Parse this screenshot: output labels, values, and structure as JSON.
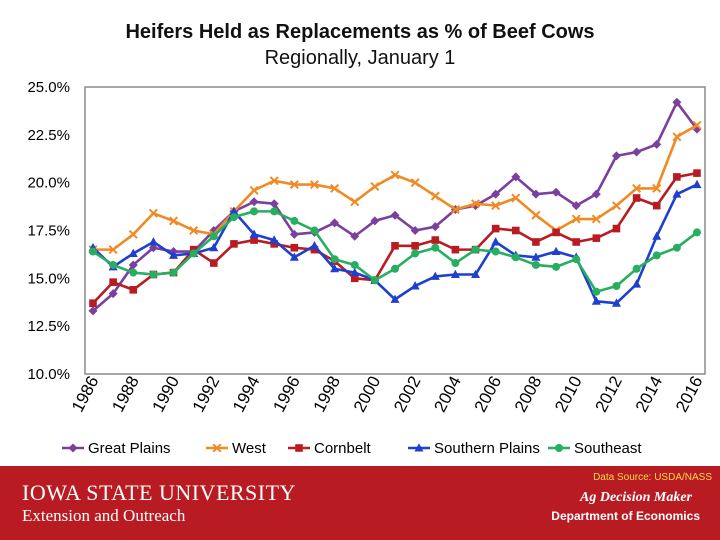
{
  "chart_data": {
    "type": "line",
    "title": "Heifers Held as Replacements as % of Beef Cows",
    "subtitle": "Regionally, January 1",
    "xlabel": "",
    "ylabel": "",
    "ylim": [
      10,
      25
    ],
    "y_ticks": [
      10,
      12.5,
      15,
      17.5,
      20,
      22.5,
      25
    ],
    "y_tick_labels": [
      "10.0%",
      "12.5%",
      "15.0%",
      "17.5%",
      "20.0%",
      "22.5%",
      "25.0%"
    ],
    "x": [
      1986,
      1987,
      1988,
      1989,
      1990,
      1991,
      1992,
      1993,
      1994,
      1995,
      1996,
      1997,
      1998,
      1999,
      2000,
      2001,
      2002,
      2003,
      2004,
      2005,
      2006,
      2007,
      2008,
      2009,
      2010,
      2011,
      2012,
      2013,
      2014,
      2015,
      2016
    ],
    "x_tick_labels": [
      "1986",
      "1988",
      "1990",
      "1992",
      "1994",
      "1996",
      "1998",
      "2000",
      "2002",
      "2004",
      "2006",
      "2008",
      "2010",
      "2012",
      "2014",
      "2016"
    ],
    "grid": false,
    "legend_position": "bottom",
    "series": [
      {
        "name": "Great Plains",
        "color": "#7b3f9e",
        "marker": "diamond",
        "values": [
          13.3,
          14.2,
          15.7,
          16.6,
          16.4,
          16.4,
          17.5,
          18.5,
          19.0,
          18.9,
          17.3,
          17.4,
          17.9,
          17.2,
          18.0,
          18.3,
          17.5,
          17.7,
          18.6,
          18.8,
          19.4,
          20.3,
          19.4,
          19.5,
          18.8,
          19.4,
          21.4,
          21.6,
          22.0,
          24.2,
          22.8
        ]
      },
      {
        "name": "West",
        "color": "#f08a24",
        "marker": "x",
        "values": [
          16.5,
          16.5,
          17.3,
          18.4,
          18.0,
          17.5,
          17.3,
          18.5,
          19.6,
          20.1,
          19.9,
          19.9,
          19.7,
          19.0,
          19.8,
          20.4,
          20.0,
          19.3,
          18.6,
          18.9,
          18.8,
          19.2,
          18.3,
          17.5,
          18.1,
          18.1,
          18.8,
          19.7,
          19.7,
          22.4,
          23.0
        ]
      },
      {
        "name": "Cornbelt",
        "color": "#b81c22",
        "marker": "square",
        "values": [
          13.7,
          14.8,
          14.4,
          15.2,
          15.3,
          16.5,
          15.8,
          16.8,
          17.0,
          16.8,
          16.6,
          16.5,
          15.9,
          15.0,
          14.9,
          16.7,
          16.7,
          17.0,
          16.5,
          16.5,
          17.6,
          17.5,
          16.9,
          17.4,
          16.9,
          17.1,
          17.6,
          19.2,
          18.8,
          20.3,
          20.5
        ]
      },
      {
        "name": "Southern Plains",
        "color": "#1f3fcf",
        "marker": "triangle",
        "values": [
          16.6,
          15.6,
          16.3,
          16.9,
          16.2,
          16.3,
          16.6,
          18.5,
          17.3,
          17.0,
          16.1,
          16.7,
          15.5,
          15.3,
          14.9,
          13.9,
          14.6,
          15.1,
          15.2,
          15.2,
          16.9,
          16.2,
          16.1,
          16.4,
          16.1,
          13.8,
          13.7,
          14.7,
          17.2,
          19.4,
          19.9
        ]
      },
      {
        "name": "Southeast",
        "color": "#27ae60",
        "marker": "circle",
        "values": [
          16.4,
          15.7,
          15.3,
          15.2,
          15.3,
          16.3,
          17.2,
          18.2,
          18.5,
          18.5,
          18.0,
          17.5,
          16.0,
          15.7,
          14.9,
          15.5,
          16.3,
          16.6,
          15.8,
          16.5,
          16.4,
          16.1,
          15.7,
          15.6,
          16.0,
          14.3,
          14.6,
          15.5,
          16.2,
          16.6,
          17.4
        ]
      }
    ]
  },
  "footer": {
    "source_note": "Data Source: USDA/NASS",
    "university": "IOWA STATE UNIVERSITY",
    "extension": "Extension and Outreach",
    "ag_decision_maker": "Ag Decision Maker",
    "department": "Department of Economics"
  },
  "colors": {
    "footer_bg": "#b81c22",
    "source_text": "#f6d84a"
  }
}
